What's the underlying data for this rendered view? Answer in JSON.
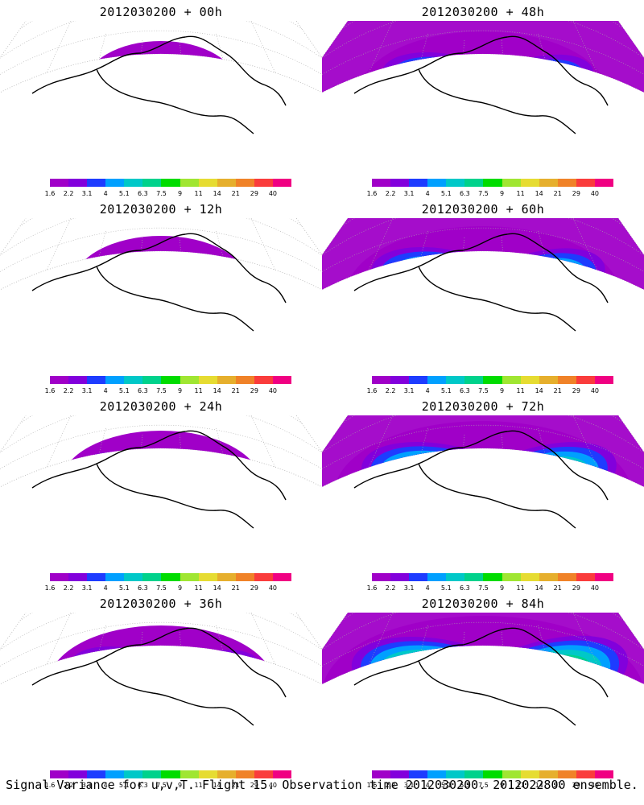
{
  "panels": [
    {
      "title": "2012030200 + 00h",
      "intensity": 0
    },
    {
      "title": "2012030200 + 48h",
      "intensity": 4
    },
    {
      "title": "2012030200 + 12h",
      "intensity": 1
    },
    {
      "title": "2012030200 + 60h",
      "intensity": 5
    },
    {
      "title": "2012030200 + 24h",
      "intensity": 2
    },
    {
      "title": "2012030200 + 72h",
      "intensity": 6
    },
    {
      "title": "2012030200 + 36h",
      "intensity": 3
    },
    {
      "title": "2012030200 + 84h",
      "intensity": 7
    }
  ],
  "colorbar": {
    "labels": [
      "1.6",
      "2.2",
      "3.1",
      "4",
      "5.1",
      "6.3",
      "7.5",
      "9",
      "11",
      "14",
      "21",
      "29",
      "40"
    ],
    "colors": [
      "#a000c8",
      "#8200dc",
      "#1e3cff",
      "#00a0ff",
      "#00c8c8",
      "#00d28c",
      "#00dc00",
      "#a0e632",
      "#e6dc32",
      "#e6af2d",
      "#f08228",
      "#fa3c3c",
      "#f00082"
    ]
  },
  "caption": "Signal Variance for u,v,T. Flight 15. Observation time 2012030200. 2012022800 ensemble."
}
